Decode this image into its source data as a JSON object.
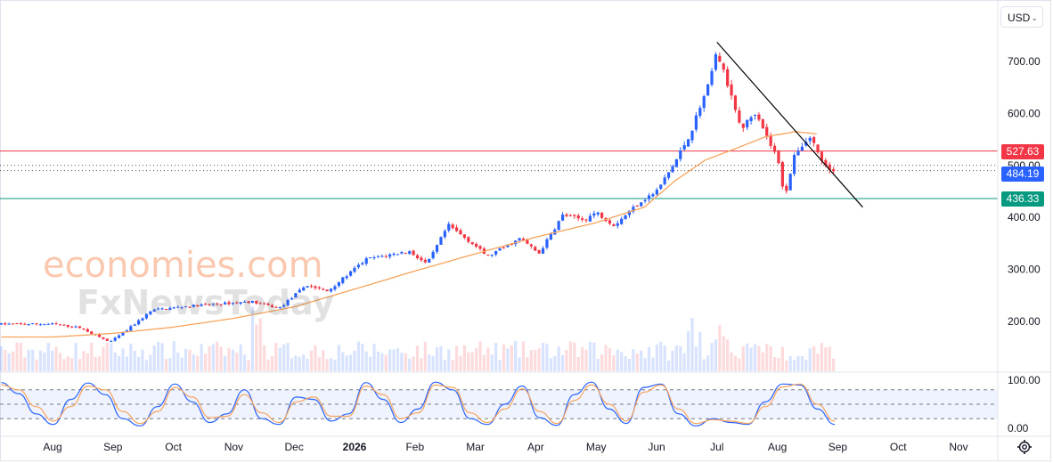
{
  "currency": "USD",
  "watermark": {
    "line1": "economies.com",
    "line2": "FxNewsToday"
  },
  "badges": {
    "resistance": "527.63",
    "last": "484.19",
    "support": "436.33",
    "colors": {
      "resistance": "#f23645",
      "last": "#2962ff",
      "support": "#089981"
    }
  },
  "chart_data": [
    {
      "type": "candlestick",
      "title": "",
      "y_ticks": [
        "700.00",
        "600.00",
        "500.00",
        "400.00",
        "300.00",
        "200.00"
      ],
      "ylim": [
        105,
        745
      ],
      "x_ticks": [
        "Aug",
        "Sep",
        "Oct",
        "Nov",
        "Dec",
        "2026",
        "Feb",
        "Mar",
        "Apr",
        "May",
        "Jun",
        "Jul",
        "Aug",
        "Sep",
        "Oct",
        "Nov"
      ],
      "levels": [
        {
          "name": "resistance",
          "value": 527.63,
          "color": "#f23645"
        },
        {
          "name": "support",
          "value": 436.33,
          "color": "#089981"
        }
      ],
      "last_price": 484.19,
      "dotted_levels": [
        500,
        490
      ],
      "trendline": {
        "from": {
          "month": "Jul",
          "value": 737
        },
        "to": {
          "month": "Sep",
          "value": 430
        },
        "color": "#000000"
      },
      "colors": {
        "up": "#2962ff",
        "down": "#f23645",
        "ma": "#f7a35c"
      },
      "close_anchors": [
        {
          "month_index": 0.0,
          "value": 195
        },
        {
          "month_index": 0.45,
          "value": 188
        },
        {
          "month_index": 0.95,
          "value": 160
        },
        {
          "month_index": 1.25,
          "value": 185
        },
        {
          "month_index": 1.65,
          "value": 222
        },
        {
          "month_index": 2.3,
          "value": 230
        },
        {
          "month_index": 3.3,
          "value": 238
        },
        {
          "month_index": 3.75,
          "value": 225
        },
        {
          "month_index": 4.2,
          "value": 270
        },
        {
          "month_index": 4.55,
          "value": 258
        },
        {
          "month_index": 5.2,
          "value": 320
        },
        {
          "month_index": 5.9,
          "value": 335
        },
        {
          "month_index": 6.2,
          "value": 310
        },
        {
          "month_index": 6.55,
          "value": 385
        },
        {
          "month_index": 6.95,
          "value": 350
        },
        {
          "month_index": 7.2,
          "value": 325
        },
        {
          "month_index": 7.75,
          "value": 360
        },
        {
          "month_index": 8.05,
          "value": 330
        },
        {
          "month_index": 8.45,
          "value": 405
        },
        {
          "month_index": 8.8,
          "value": 395
        },
        {
          "month_index": 9.0,
          "value": 410
        },
        {
          "month_index": 9.3,
          "value": 385
        },
        {
          "month_index": 9.7,
          "value": 428
        },
        {
          "month_index": 10.0,
          "value": 450
        },
        {
          "month_index": 10.3,
          "value": 505
        },
        {
          "month_index": 10.55,
          "value": 560
        },
        {
          "month_index": 10.85,
          "value": 650
        },
        {
          "month_index": 11.0,
          "value": 718
        },
        {
          "month_index": 11.15,
          "value": 665
        },
        {
          "month_index": 11.4,
          "value": 570
        },
        {
          "month_index": 11.65,
          "value": 605
        },
        {
          "month_index": 11.85,
          "value": 548
        },
        {
          "month_index": 12.0,
          "value": 515
        },
        {
          "month_index": 12.12,
          "value": 440
        },
        {
          "month_index": 12.3,
          "value": 525
        },
        {
          "month_index": 12.55,
          "value": 555
        },
        {
          "month_index": 12.75,
          "value": 505
        },
        {
          "month_index": 12.95,
          "value": 484
        }
      ],
      "ma_anchors": [
        {
          "month_index": 0.0,
          "value": 170
        },
        {
          "month_index": 1.0,
          "value": 177
        },
        {
          "month_index": 2.0,
          "value": 189
        },
        {
          "month_index": 3.0,
          "value": 206
        },
        {
          "month_index": 4.0,
          "value": 228
        },
        {
          "month_index": 5.0,
          "value": 262
        },
        {
          "month_index": 6.0,
          "value": 297
        },
        {
          "month_index": 7.0,
          "value": 330
        },
        {
          "month_index": 8.0,
          "value": 362
        },
        {
          "month_index": 9.0,
          "value": 390
        },
        {
          "month_index": 9.8,
          "value": 420
        },
        {
          "month_index": 10.3,
          "value": 470
        },
        {
          "month_index": 10.8,
          "value": 510
        },
        {
          "month_index": 11.3,
          "value": 532
        },
        {
          "month_index": 11.8,
          "value": 555
        },
        {
          "month_index": 12.3,
          "value": 565
        },
        {
          "month_index": 12.7,
          "value": 560
        }
      ]
    },
    {
      "type": "line",
      "title": "",
      "y_ticks": [
        "100.00",
        "0.00"
      ],
      "ylim": [
        0,
        100
      ],
      "band": [
        20,
        80
      ],
      "series": [
        {
          "color": "#2962ff",
          "values": [
            95,
            72,
            30,
            8,
            60,
            94,
            70,
            20,
            5,
            45,
            92,
            55,
            12,
            30,
            80,
            20,
            8,
            65,
            60,
            15,
            30,
            95,
            60,
            12,
            40,
            96,
            80,
            20,
            8,
            50,
            88,
            22,
            6,
            70,
            96,
            40,
            10,
            85,
            92,
            30,
            5,
            20,
            12,
            8,
            55,
            92,
            90,
            40,
            8
          ]
        },
        {
          "color": "#f7a35c",
          "values": [
            90,
            80,
            45,
            15,
            45,
            88,
            80,
            35,
            10,
            35,
            85,
            65,
            22,
            25,
            70,
            32,
            12,
            55,
            65,
            25,
            25,
            88,
            70,
            20,
            32,
            90,
            85,
            32,
            12,
            40,
            82,
            35,
            10,
            58,
            90,
            50,
            15,
            75,
            90,
            40,
            10,
            18,
            15,
            10,
            45,
            86,
            92,
            50,
            15
          ]
        }
      ]
    }
  ]
}
